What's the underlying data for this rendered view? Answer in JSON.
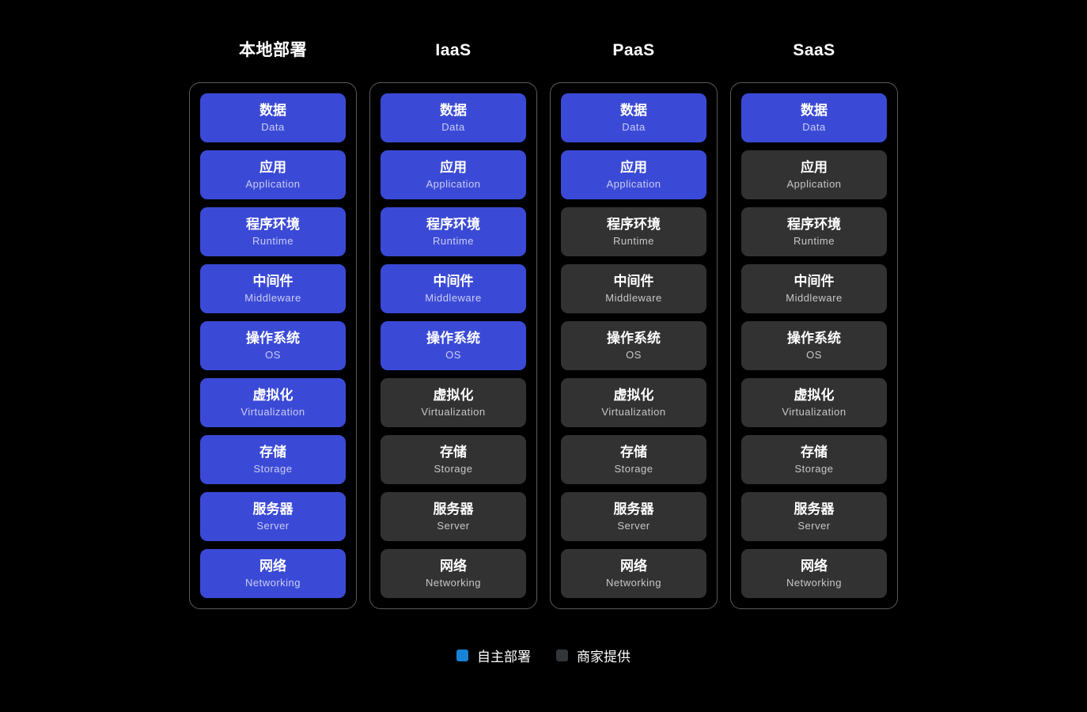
{
  "colors": {
    "background": "#000000",
    "self_box": "#3b4ad6",
    "vendor_box": "#323232",
    "stack_border": "#5a5a5a",
    "legend_self": "#1583d8",
    "legend_vendor": "#333639"
  },
  "layers": [
    {
      "zh": "数据",
      "en": "Data"
    },
    {
      "zh": "应用",
      "en": "Application"
    },
    {
      "zh": "程序环境",
      "en": "Runtime"
    },
    {
      "zh": "中间件",
      "en": "Middleware"
    },
    {
      "zh": "操作系统",
      "en": "OS"
    },
    {
      "zh": "虚拟化",
      "en": "Virtualization"
    },
    {
      "zh": "存储",
      "en": "Storage"
    },
    {
      "zh": "服务器",
      "en": "Server"
    },
    {
      "zh": "网络",
      "en": "Networking"
    }
  ],
  "columns": [
    {
      "title": "本地部署",
      "self_managed_count": 9
    },
    {
      "title": "IaaS",
      "self_managed_count": 5
    },
    {
      "title": "PaaS",
      "self_managed_count": 2
    },
    {
      "title": "SaaS",
      "self_managed_count": 1
    }
  ],
  "legend": [
    {
      "label": "自主部署",
      "type": "self"
    },
    {
      "label": "商家提供",
      "type": "vendor"
    }
  ]
}
